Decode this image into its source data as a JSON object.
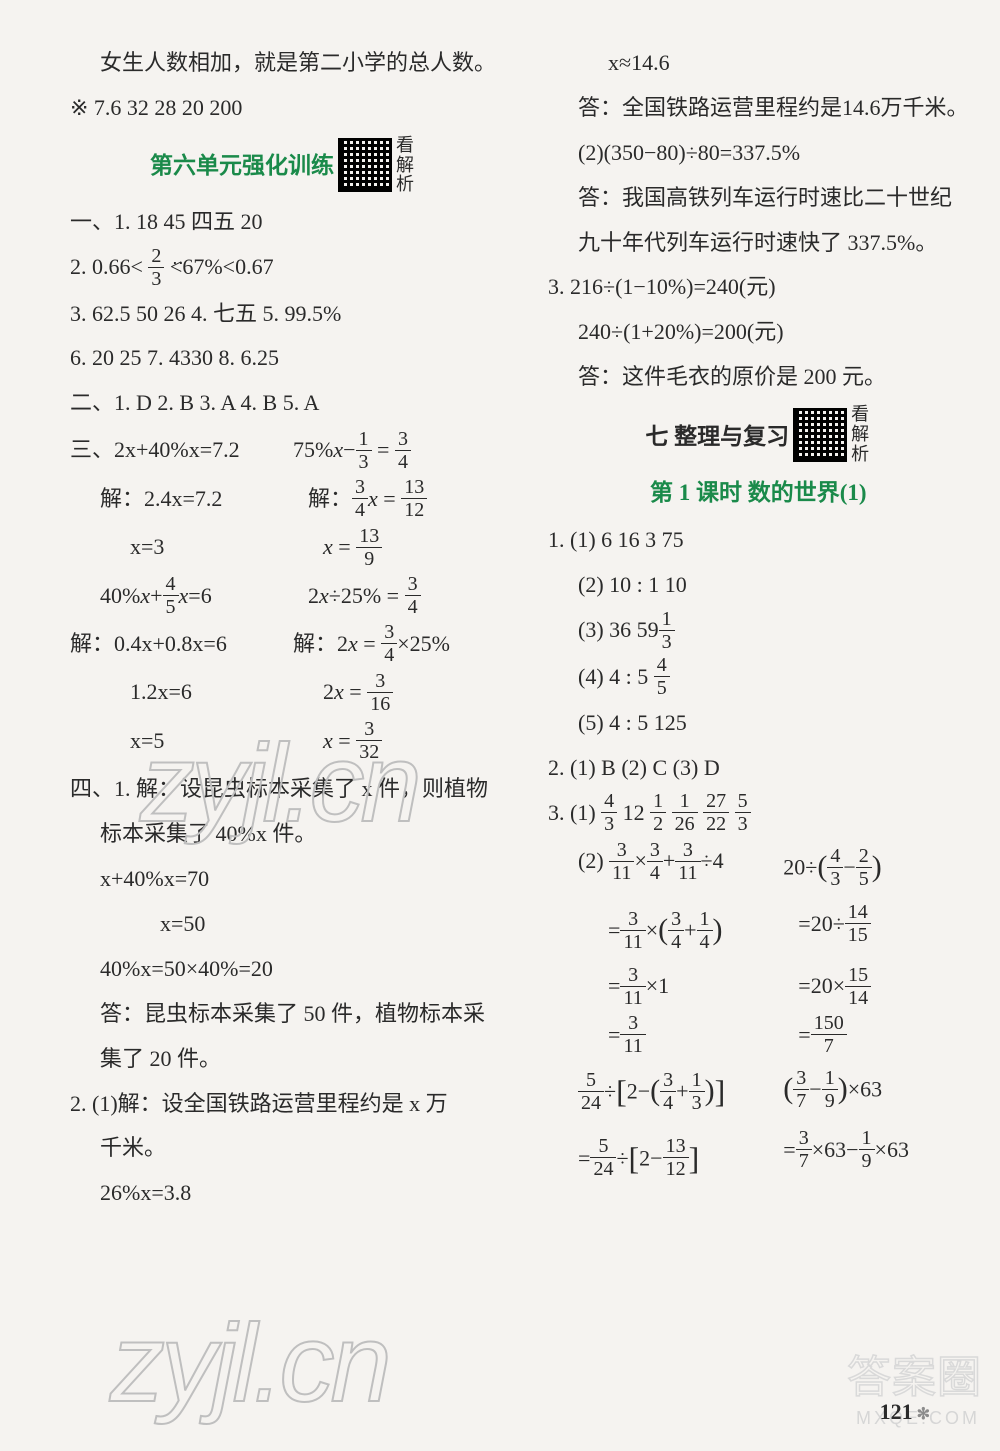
{
  "page_number": "121",
  "background_color": "#f5f3f0",
  "text_color": "#2a2a2a",
  "accent_color": "#1a8a4a",
  "watermark_text": "zyjl.cn",
  "corner_watermark": "答案圈",
  "corner_watermark_sub": "MXQE.COM",
  "qr_side_label": "看解析",
  "left": {
    "intro": "女生人数相加，就是第二小学的总人数。",
    "star_line": "※ 7.6  32  28  20  200",
    "unit6_title": "第六单元强化训练",
    "sec1_1": "一、1. 18  45  四五  20",
    "sec1_2a": "2. 0.66<",
    "sec1_2b": "<67%<0.67",
    "sec1_3": "3. 62.5  50  26   4. 七五   5. 99.5%",
    "sec1_6": "6. 20  25   7. 4330   8. 6.25",
    "sec2": "二、1. D   2. B   3. A   4. B   5. A",
    "sec3_head": "三、2x+40%x=7.2",
    "sec3_rA": "75%x−  =",
    "step1L": "解：2.4x=7.2",
    "step1R": "解：  x=",
    "step2L": "x=3",
    "step2R": "x=",
    "eqBL": "40%x+  x=6",
    "eqBR": "2x÷25%=",
    "stepB1L": "解：0.4x+0.8x=6",
    "stepB1R": "解：2x=  ×25%",
    "stepB2L": "1.2x=6",
    "stepB2R": "2x=",
    "stepB3L": "x=5",
    "stepB3R": "x=",
    "sec4_1a": "四、1. 解：设昆虫标本采集了 x 件，则植物",
    "sec4_1b": "标本采集了 40%x 件。",
    "sec4_1c": "x+40%x=70",
    "sec4_1d": "x=50",
    "sec4_1e": "40%x=50×40%=20",
    "sec4_1f": "答：昆虫标本采集了 50 件，植物标本采",
    "sec4_1g": "集了 20 件。",
    "sec4_2a": "2. (1)解：设全国铁路运营里程约是 x 万",
    "sec4_2b": "千米。",
    "sec4_2c": "26%x=3.8"
  },
  "right": {
    "r1": "x≈14.6",
    "r2": "答：全国铁路运营里程约是14.6万千米。",
    "r3": "(2)(350−80)÷80=337.5%",
    "r4": "答：我国高铁列车运行时速比二十世纪",
    "r5": "九十年代列车运行时速快了 337.5%。",
    "r6": "3. 216÷(1−10%)=240(元)",
    "r7": "240÷(1+20%)=200(元)",
    "r8": "答：这件毛衣的原价是 200 元。",
    "chapter7": "七  整理与复习",
    "lesson1": "第 1 课时  数的世界(1)",
    "q1_1": "1. (1) 6  16  3  75",
    "q1_2": "(2) 10 : 1   10",
    "q1_3": "(3) 36  59",
    "q1_4": "(4) 4 : 5  ",
    "q1_5": "(5) 4 : 5   125",
    "q2": "2. (1) B   (2) C   (3) D",
    "q3_1": "3. (1)   12        ",
    "q3_2L": "(2)  ×  +  ÷4",
    "q3_2R": "20÷(  −  )",
    "q3_3L": "=  ×(  +  )",
    "q3_3R": "=20÷",
    "q3_4L": "=  ×1",
    "q3_4R": "=20×",
    "q3_5L": "=",
    "q3_5R": "=",
    "q3_6L": " ÷ [ 2−(  +  ) ]",
    "q3_6R": "(  −  )×63",
    "q3_7L": "=  ÷ [ 2−   ]",
    "q3_7R": "=  ×63−  ×63"
  }
}
